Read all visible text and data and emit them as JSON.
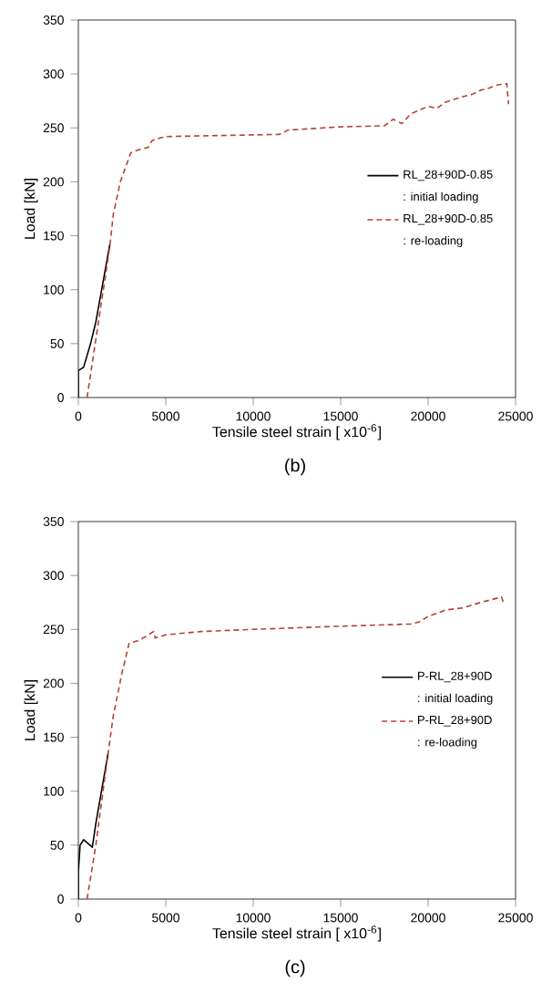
{
  "chart_data": [
    {
      "type": "line",
      "xlabel": "Tensile steel strain [ x10$^{-6}$]",
      "ylabel": "Load [kN]",
      "xlim": [
        0,
        25000
      ],
      "ylim": [
        0,
        350
      ],
      "xticks": [
        0,
        5000,
        10000,
        15000,
        20000,
        25000
      ],
      "yticks": [
        0,
        50,
        100,
        150,
        200,
        250,
        300,
        350
      ],
      "legend": "right",
      "grid": false,
      "annotations": [
        ": initial loading",
        ": re-loading",
        "(b)"
      ],
      "series": [
        {
          "name": "RL_28+90D-0.85",
          "color": "#000000",
          "line_style": "solid",
          "x": [
            0,
            0,
            300,
            700,
            1000,
            1800
          ],
          "values": [
            0,
            25,
            28,
            50,
            70,
            142
          ]
        },
        {
          "name": "RL_28+90D-0.85",
          "color": "#b5432f",
          "line_style": "dashed",
          "x": [
            500,
            1800,
            2000,
            2400,
            3000,
            3500,
            4000,
            4200,
            4500,
            5000,
            11500,
            12000,
            15000,
            17500,
            18000,
            18500,
            19000,
            20000,
            20500,
            21000,
            22000,
            22500,
            23000,
            23500,
            24000,
            24500,
            24600
          ],
          "values": [
            0,
            140,
            170,
            200,
            227,
            230,
            232,
            238,
            240,
            242,
            244,
            248,
            251,
            252,
            258,
            254,
            263,
            270,
            268,
            274,
            279,
            281,
            285,
            287,
            290,
            291,
            272
          ]
        }
      ]
    },
    {
      "type": "line",
      "xlabel": "Tensile steel strain [ x10$^{-6}$]",
      "ylabel": "Load [kN]",
      "xlim": [
        0,
        25000
      ],
      "ylim": [
        0,
        350
      ],
      "xticks": [
        0,
        5000,
        10000,
        15000,
        20000,
        25000
      ],
      "yticks": [
        0,
        50,
        100,
        150,
        200,
        250,
        300,
        350
      ],
      "legend": "right",
      "grid": false,
      "annotations": [
        ": initial loading",
        ": re-loading",
        "(c)"
      ],
      "series": [
        {
          "name": "P-RL_28+90D",
          "color": "#000000",
          "line_style": "solid",
          "x": [
            0,
            0,
            100,
            300,
            800,
            1000,
            1700
          ],
          "values": [
            0,
            25,
            50,
            55,
            48,
            70,
            135
          ]
        },
        {
          "name": "P-RL_28+90D",
          "color": "#b5432f",
          "line_style": "dashed",
          "x": [
            500,
            1000,
            1700,
            2000,
            2500,
            2900,
            3500,
            4300,
            4400,
            5000,
            7000,
            10000,
            15000,
            19000,
            19500,
            20000,
            21000,
            22000,
            23000,
            24200,
            24300
          ],
          "values": [
            0,
            50,
            135,
            170,
            210,
            237,
            240,
            248,
            242,
            245,
            248,
            250,
            253,
            255,
            257,
            262,
            268,
            270,
            275,
            280,
            275
          ]
        }
      ]
    }
  ]
}
